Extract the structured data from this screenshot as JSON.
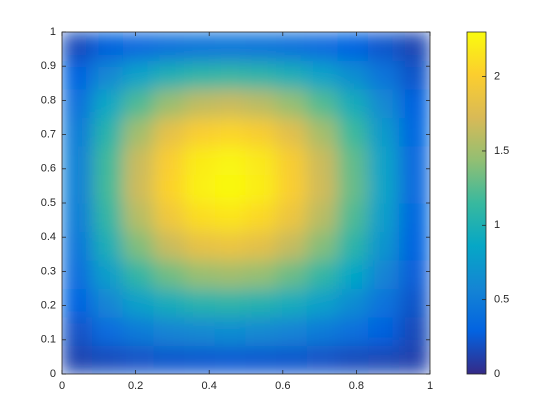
{
  "chart_data": {
    "type": "heatmap",
    "xlim": [
      0,
      1
    ],
    "ylim": [
      0,
      1
    ],
    "xticks": [
      0,
      0.2,
      0.4,
      0.6,
      0.8,
      1
    ],
    "yticks": [
      0,
      0.1,
      0.2,
      0.3,
      0.4,
      0.5,
      0.6,
      0.7,
      0.8,
      0.9,
      1
    ],
    "z": [
      [
        0.13,
        0.17,
        0.2,
        0.22,
        0.23,
        0.24,
        0.23,
        0.22,
        0.2,
        0.17,
        0.15,
        0.12
      ],
      [
        0.2,
        0.36,
        0.48,
        0.57,
        0.61,
        0.63,
        0.61,
        0.56,
        0.48,
        0.39,
        0.28,
        0.16
      ],
      [
        0.29,
        0.58,
        0.8,
        0.95,
        1.04,
        1.07,
        1.03,
        0.94,
        0.8,
        0.63,
        0.42,
        0.21
      ],
      [
        0.38,
        0.79,
        1.11,
        1.33,
        1.46,
        1.5,
        1.45,
        1.31,
        1.11,
        0.86,
        0.57,
        0.26
      ],
      [
        0.45,
        0.98,
        1.38,
        1.66,
        1.83,
        1.87,
        1.81,
        1.64,
        1.39,
        1.07,
        0.7,
        0.3
      ],
      [
        0.51,
        1.11,
        1.58,
        1.91,
        2.1,
        2.15,
        2.07,
        1.88,
        1.59,
        1.22,
        0.79,
        0.33
      ],
      [
        0.53,
        1.18,
        1.68,
        2.03,
        2.23,
        2.29,
        2.21,
        2.0,
        1.69,
        1.3,
        0.84,
        0.35
      ],
      [
        0.53,
        1.17,
        1.66,
        2.0,
        2.2,
        2.26,
        2.18,
        1.98,
        1.67,
        1.28,
        0.83,
        0.35
      ],
      [
        0.49,
        1.06,
        1.5,
        1.82,
        2.0,
        2.05,
        1.98,
        1.79,
        1.51,
        1.16,
        0.75,
        0.32
      ],
      [
        0.41,
        0.87,
        1.22,
        1.47,
        1.62,
        1.66,
        1.6,
        1.45,
        1.23,
        0.95,
        0.62,
        0.28
      ],
      [
        0.3,
        0.6,
        0.83,
        0.99,
        1.08,
        1.11,
        1.07,
        0.98,
        0.83,
        0.65,
        0.44,
        0.21
      ],
      [
        0.17,
        0.27,
        0.35,
        0.41,
        0.44,
        0.45,
        0.44,
        0.41,
        0.36,
        0.29,
        0.22,
        0.14
      ]
    ],
    "clim": [
      0,
      2.3
    ],
    "colorbar_ticks": [
      0,
      0.5,
      1,
      1.5,
      2
    ],
    "colormap": [
      "#352a87",
      "#0363e1",
      "#1485d4",
      "#06a7c6",
      "#38b99e",
      "#92bf73",
      "#d9ba56",
      "#fcce2e",
      "#f9fb0e"
    ]
  }
}
